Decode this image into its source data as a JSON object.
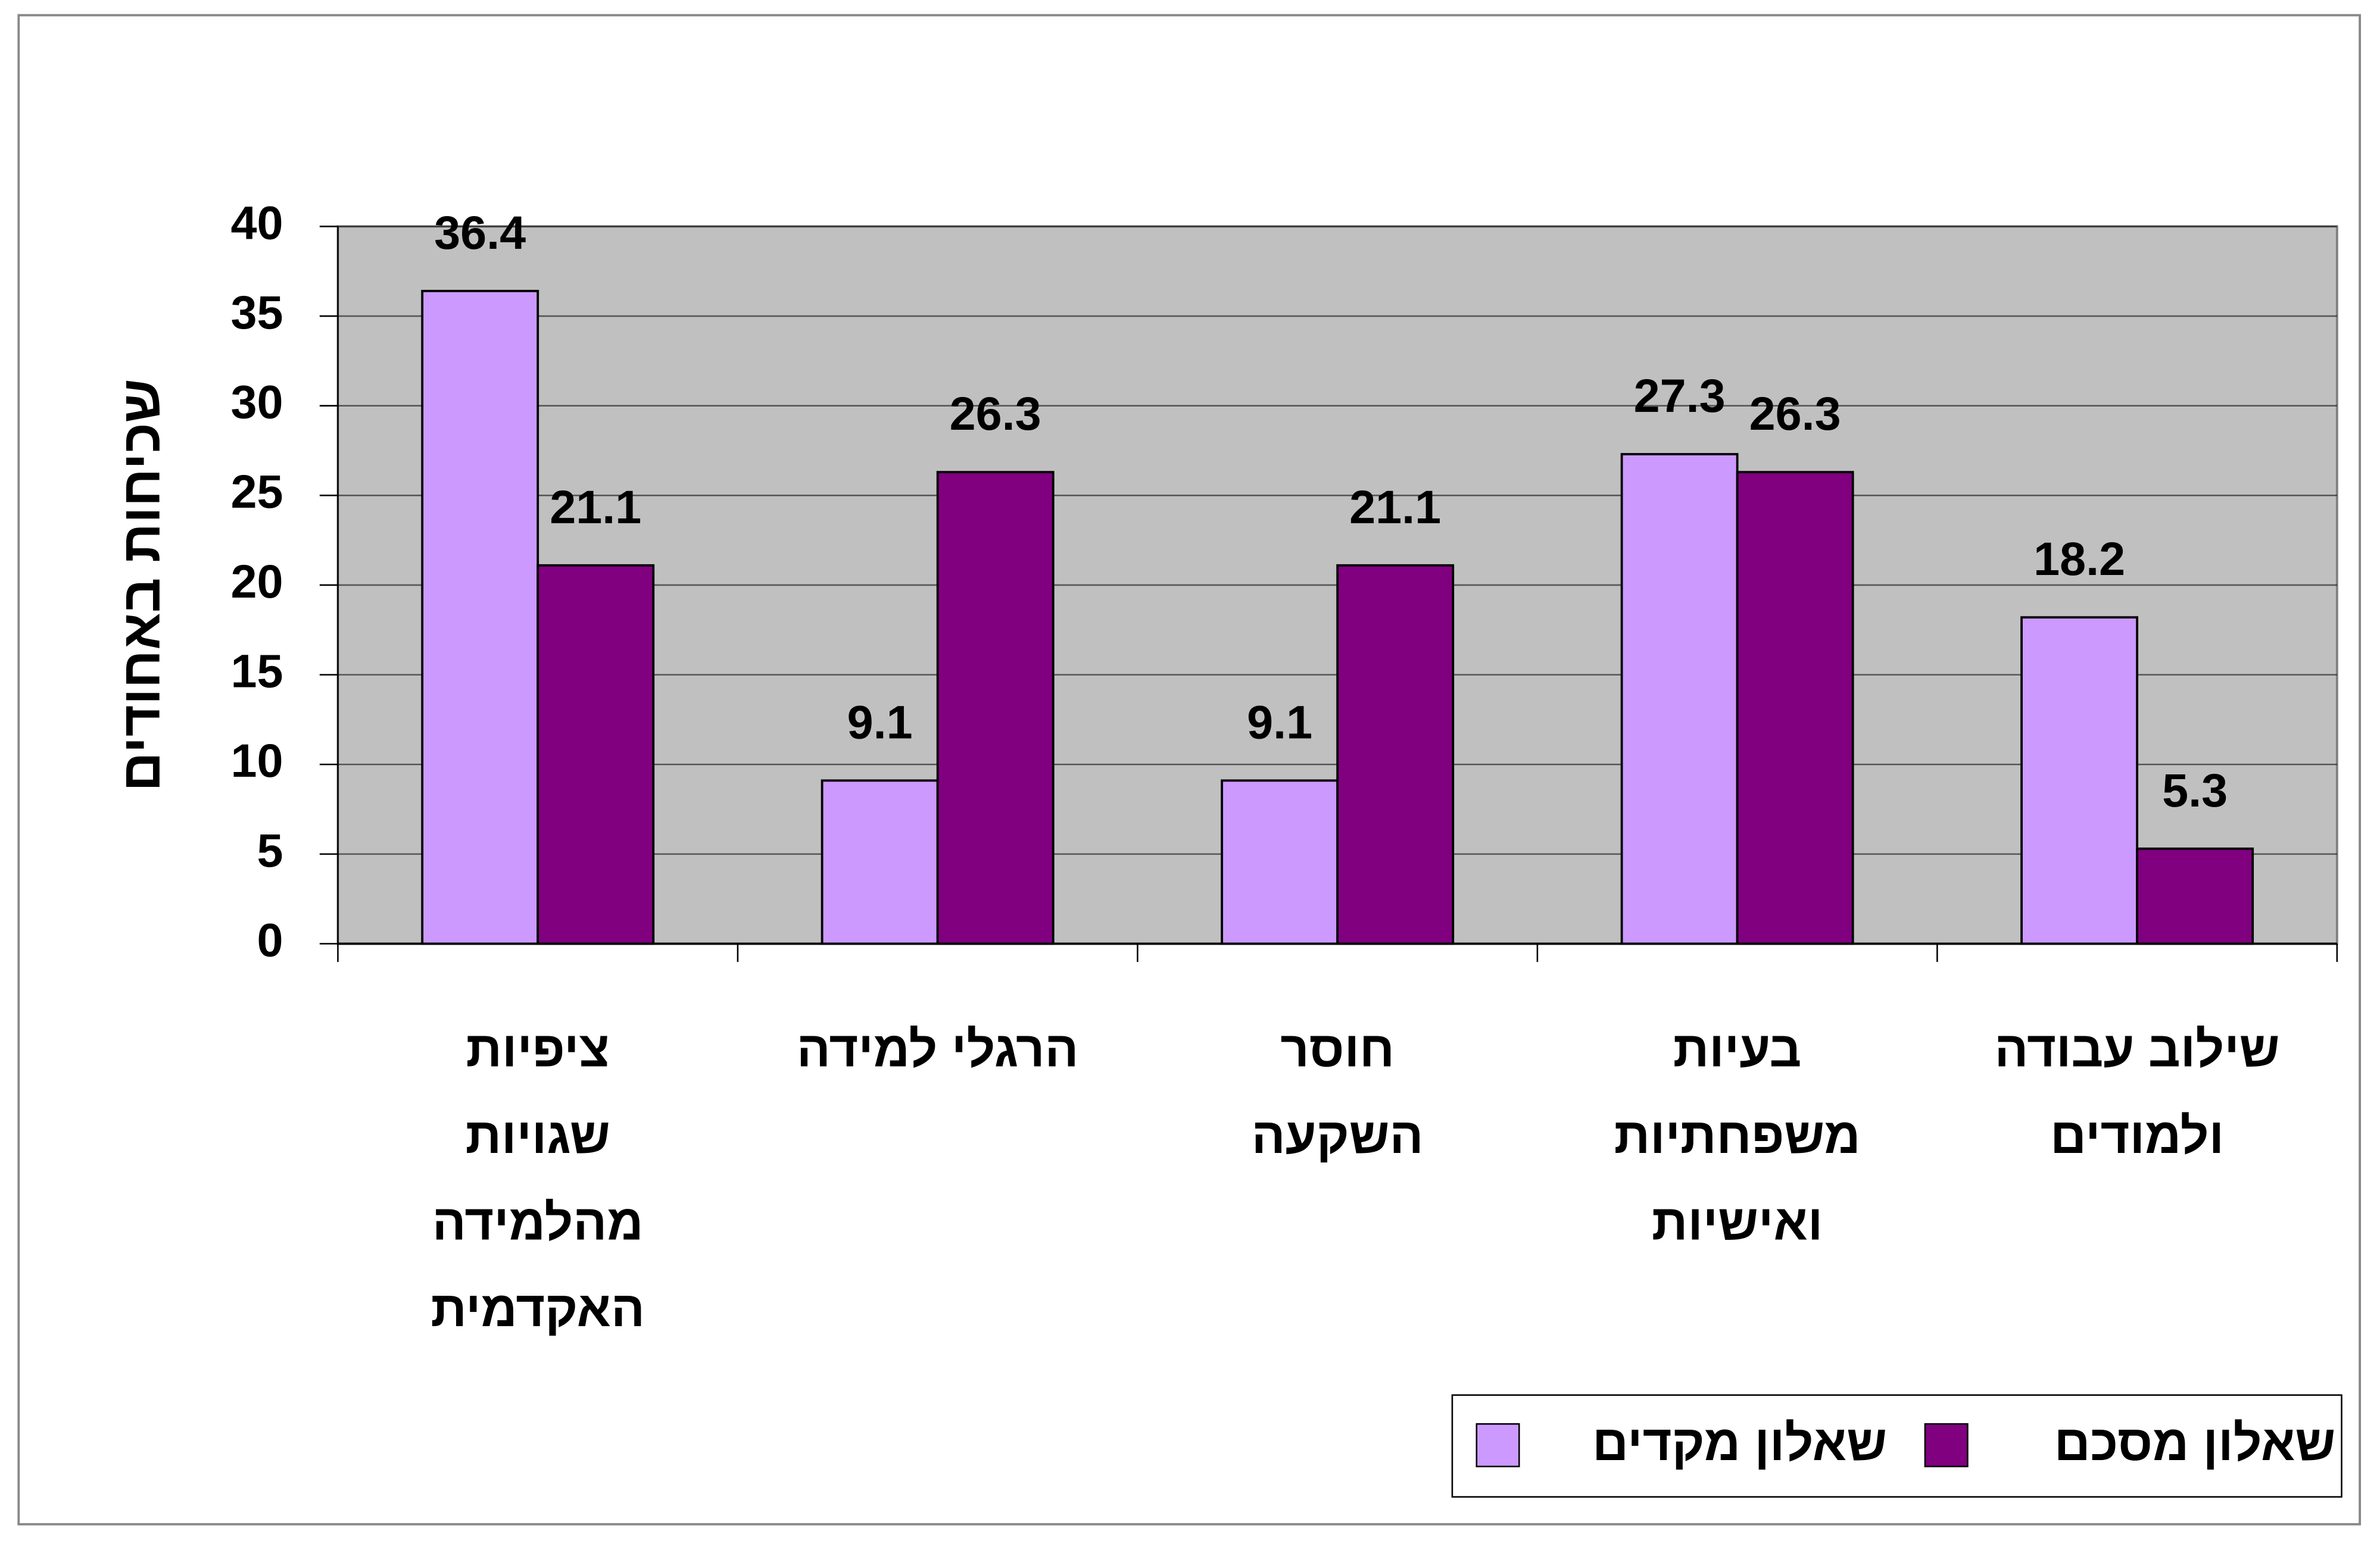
{
  "chart_data": {
    "type": "bar",
    "y_label": "שכיחות באחודים",
    "categories": [
      [
        "ציפיות",
        "שגויות",
        "מהלמידה",
        "האקדמית"
      ],
      [
        "הרגלי למידה"
      ],
      [
        "חוסר",
        "השקעה"
      ],
      [
        "בעיות",
        "משפחתיות",
        "ואישיות"
      ],
      [
        "שילוב עבודה",
        "ולמודים"
      ]
    ],
    "series": [
      {
        "name": "שאלון מקדים",
        "color": "#cc99ff",
        "values": [
          36.4,
          9.1,
          9.1,
          27.3,
          18.2
        ]
      },
      {
        "name": "שאלון מסכם",
        "color": "#800080",
        "values": [
          21.1,
          26.3,
          21.1,
          26.3,
          5.3
        ]
      }
    ],
    "ylim": [
      0,
      40
    ],
    "yticks": [
      0,
      5,
      10,
      15,
      20,
      25,
      30,
      35,
      40
    ],
    "grid": true,
    "plot_background": "#c0c0c0",
    "legend_position": "bottom-right"
  }
}
